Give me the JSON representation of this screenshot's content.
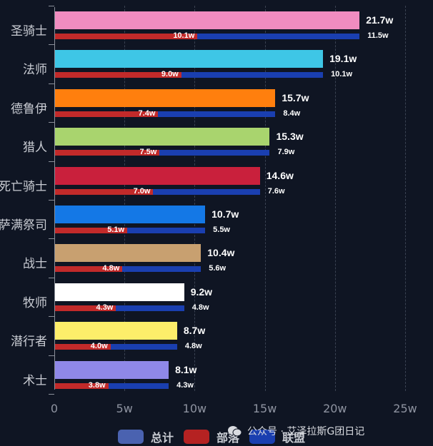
{
  "chart_data": {
    "type": "bar",
    "orientation": "horizontal",
    "title": "",
    "xlabel": "",
    "ylabel": "",
    "unit": "w",
    "xlim": [
      0,
      25
    ],
    "x_ticks": [
      "0",
      "5w",
      "10w",
      "15w",
      "20w",
      "25w"
    ],
    "grid": true,
    "legend_position": "bottom",
    "categories": [
      "圣骑士",
      "法师",
      "德鲁伊",
      "猎人",
      "死亡骑士",
      "萨满祭司",
      "战士",
      "牧师",
      "潜行者",
      "术士"
    ],
    "series": [
      {
        "name": "总计",
        "values": [
          21.7,
          19.1,
          15.7,
          15.3,
          14.6,
          10.7,
          10.4,
          9.2,
          8.7,
          8.1
        ],
        "labels": [
          "21.7w",
          "19.1w",
          "15.7w",
          "15.3w",
          "14.6w",
          "10.7w",
          "10.4w",
          "9.2w",
          "8.7w",
          "8.1w"
        ]
      },
      {
        "name": "部落",
        "values": [
          10.1,
          9.0,
          7.4,
          7.5,
          7.0,
          5.1,
          4.8,
          4.3,
          4.0,
          3.8
        ],
        "labels": [
          "10.1w",
          "9.0w",
          "7.4w",
          "7.5w",
          "7.0w",
          "5.1w",
          "4.8w",
          "4.3w",
          "4.0w",
          "3.8w"
        ]
      },
      {
        "name": "联盟",
        "values": [
          11.5,
          10.1,
          8.4,
          7.9,
          7.6,
          5.5,
          5.6,
          4.8,
          4.8,
          4.3
        ],
        "labels": [
          "11.5w",
          "10.1w",
          "8.4w",
          "7.9w",
          "7.6w",
          "5.5w",
          "5.6w",
          "4.8w",
          "4.8w",
          "4.3w"
        ]
      }
    ],
    "total_bar_colors": [
      "#f08cc0",
      "#3ec6e6",
      "#ff7f0e",
      "#a9d46e",
      "#c9203c",
      "#1478e6",
      "#c8a070",
      "#ffffff",
      "#fdee6a",
      "#8f88e8"
    ],
    "stack_colors": {
      "部落": "#c22a2a",
      "联盟": "#1a3fb0"
    }
  },
  "legend": {
    "items": [
      {
        "label": "总计",
        "color": "#4a62b0"
      },
      {
        "label": "部落",
        "color": "#b52222"
      },
      {
        "label": "联盟",
        "color": "#1a3fb0"
      }
    ]
  },
  "watermark": {
    "text": "公众号 · 艾泽拉斯G团日记"
  }
}
